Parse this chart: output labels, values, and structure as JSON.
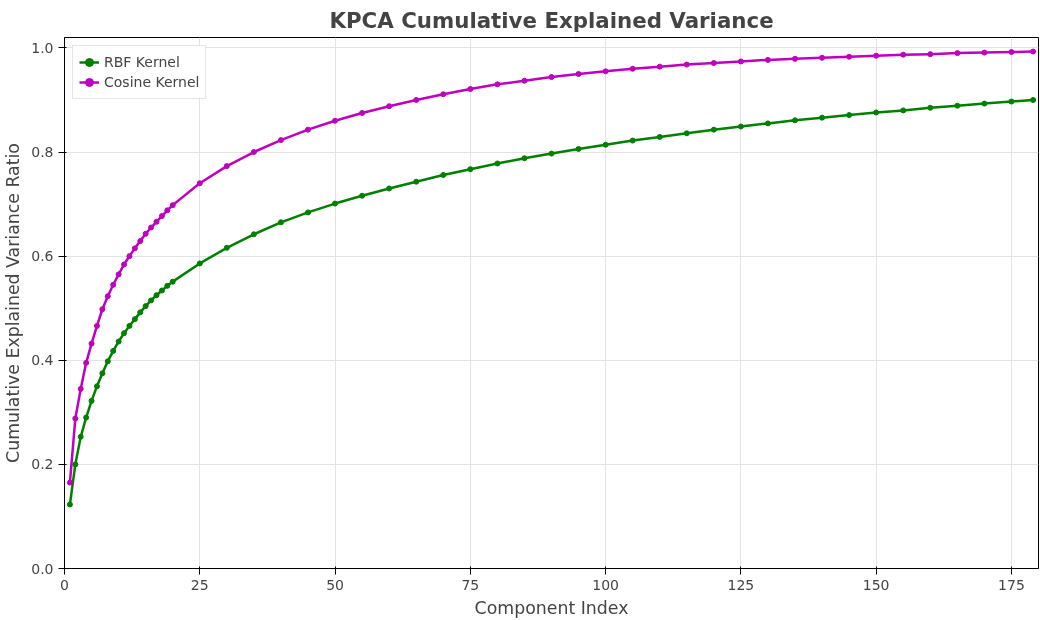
{
  "chart_data": {
    "type": "line",
    "title": "KPCA Cumulative Explained Variance",
    "xlabel": "Component Index",
    "ylabel": "Cumulative Explained Variance Ratio",
    "x": [
      1,
      2,
      3,
      4,
      5,
      6,
      7,
      8,
      9,
      10,
      11,
      12,
      13,
      14,
      15,
      16,
      17,
      18,
      19,
      20,
      25,
      30,
      35,
      40,
      45,
      50,
      55,
      60,
      65,
      70,
      75,
      80,
      85,
      90,
      95,
      100,
      105,
      110,
      115,
      120,
      125,
      130,
      135,
      140,
      145,
      150,
      155,
      160,
      165,
      170,
      175,
      179
    ],
    "series": [
      {
        "name": "RBF Kernel",
        "color": "#008000",
        "values": [
          0.123,
          0.2,
          0.253,
          0.29,
          0.322,
          0.35,
          0.375,
          0.398,
          0.418,
          0.436,
          0.452,
          0.466,
          0.479,
          0.492,
          0.504,
          0.515,
          0.525,
          0.534,
          0.543,
          0.551,
          0.586,
          0.616,
          0.642,
          0.665,
          0.684,
          0.701,
          0.716,
          0.73,
          0.743,
          0.756,
          0.767,
          0.778,
          0.788,
          0.797,
          0.806,
          0.814,
          0.822,
          0.829,
          0.836,
          0.843,
          0.849,
          0.855,
          0.861,
          0.866,
          0.871,
          0.876,
          0.88,
          0.885,
          0.889,
          0.893,
          0.897,
          0.9
        ]
      },
      {
        "name": "Cosine Kernel",
        "color": "#bf00bf",
        "values": [
          0.165,
          0.288,
          0.345,
          0.395,
          0.432,
          0.466,
          0.498,
          0.523,
          0.545,
          0.565,
          0.584,
          0.6,
          0.615,
          0.629,
          0.643,
          0.655,
          0.666,
          0.677,
          0.688,
          0.698,
          0.74,
          0.773,
          0.8,
          0.823,
          0.843,
          0.86,
          0.875,
          0.888,
          0.9,
          0.911,
          0.921,
          0.93,
          0.937,
          0.944,
          0.95,
          0.955,
          0.96,
          0.964,
          0.968,
          0.971,
          0.974,
          0.977,
          0.979,
          0.981,
          0.983,
          0.985,
          0.987,
          0.988,
          0.99,
          0.991,
          0.992,
          0.993
        ]
      }
    ],
    "xlim": [
      0,
      180
    ],
    "ylim": [
      0,
      1.02
    ],
    "xticks": [
      0,
      25,
      50,
      75,
      100,
      125,
      150,
      175
    ],
    "yticks": [
      {
        "value": 0,
        "label": "0.0"
      },
      {
        "value": 0.2,
        "label": "0.2"
      },
      {
        "value": 0.4,
        "label": "0.4"
      },
      {
        "value": 0.6,
        "label": "0.6"
      },
      {
        "value": 0.8,
        "label": "0.8"
      },
      {
        "value": 1.0,
        "label": "1.0"
      }
    ],
    "grid": true,
    "legend": "top left",
    "marker": "circle",
    "line_style": "solid"
  }
}
